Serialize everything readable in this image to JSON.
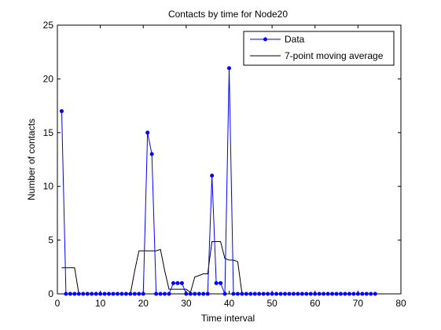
{
  "chart_data": {
    "type": "line",
    "title": "Contacts by time for Node20",
    "xlabel": "Time interval",
    "ylabel": "Number of contacts",
    "xlim": [
      0,
      80
    ],
    "ylim": [
      0,
      25
    ],
    "xticks": [
      0,
      10,
      20,
      30,
      40,
      50,
      60,
      70,
      80
    ],
    "yticks": [
      0,
      5,
      10,
      15,
      20,
      25
    ],
    "grid": false,
    "legend_position": "top-right",
    "colors": {
      "data": "#0000ff",
      "average": "#000000"
    },
    "series": [
      {
        "name": "Data",
        "marker": "dot",
        "x": [
          1,
          2,
          3,
          4,
          5,
          6,
          7,
          8,
          9,
          10,
          11,
          12,
          13,
          14,
          15,
          16,
          17,
          18,
          19,
          20,
          21,
          22,
          23,
          24,
          25,
          26,
          27,
          28,
          29,
          30,
          31,
          32,
          33,
          34,
          35,
          36,
          37,
          38,
          39,
          40,
          41,
          42,
          43,
          44,
          45,
          46,
          47,
          48,
          49,
          50,
          51,
          52,
          53,
          54,
          55,
          56,
          57,
          58,
          59,
          60,
          61,
          62,
          63,
          64,
          65,
          66,
          67,
          68,
          69,
          70,
          71,
          72,
          73,
          74
        ],
        "y": [
          17,
          0,
          0,
          0,
          0,
          0,
          0,
          0,
          0,
          0,
          0,
          0,
          0,
          0,
          0,
          0,
          0,
          0,
          0,
          0,
          15,
          13,
          0,
          0,
          0,
          0,
          1,
          1,
          1,
          0,
          0,
          0,
          0,
          0,
          0,
          11,
          1,
          1,
          0,
          21,
          0,
          0,
          0,
          0,
          0,
          0,
          0,
          0,
          0,
          0,
          0,
          0,
          0,
          0,
          0,
          0,
          0,
          0,
          0,
          0,
          0,
          0,
          0,
          0,
          0,
          0,
          0,
          0,
          0,
          0,
          0,
          0,
          0,
          0
        ]
      },
      {
        "name": "7-point moving average",
        "marker": "none",
        "x": [
          1,
          2,
          3,
          4,
          5,
          6,
          7,
          8,
          9,
          10,
          11,
          12,
          13,
          14,
          15,
          16,
          17,
          18,
          19,
          20,
          21,
          22,
          23,
          24,
          25,
          26,
          27,
          28,
          29,
          30,
          31,
          32,
          33,
          34,
          35,
          36,
          37,
          38,
          39,
          40,
          41,
          42,
          43,
          44,
          45,
          46,
          47,
          48,
          49,
          50,
          51,
          52,
          53,
          54,
          55,
          56,
          57,
          58,
          59,
          60,
          61,
          62,
          63,
          64,
          65,
          66,
          67,
          68,
          69,
          70,
          71,
          72,
          73,
          74
        ],
        "y": [
          2.43,
          2.43,
          2.43,
          2.43,
          0,
          0,
          0,
          0,
          0,
          0,
          0,
          0,
          0,
          0,
          0,
          0,
          0,
          2.14,
          4.0,
          4.0,
          4.0,
          4.0,
          4.0,
          4.14,
          2.14,
          0.43,
          0.43,
          0.43,
          0.43,
          0.43,
          0.14,
          1.57,
          1.71,
          1.86,
          1.86,
          4.86,
          4.86,
          4.86,
          3.29,
          3.14,
          3.14,
          3.0,
          0,
          0,
          0,
          0,
          0,
          0,
          0,
          0,
          0,
          0,
          0,
          0,
          0,
          0,
          0,
          0,
          0,
          0,
          0,
          0,
          0,
          0,
          0,
          0,
          0,
          0,
          0,
          0,
          0,
          0,
          0,
          0
        ]
      }
    ]
  }
}
